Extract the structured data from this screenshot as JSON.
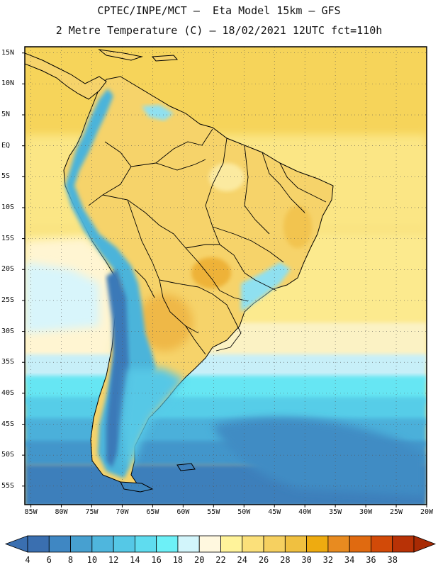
{
  "header": {
    "line1": "CPTEC/INPE/MCT –  Eta Model 15km – GFS",
    "line2": "2 Metre Temperature (C) – 18/02/2021 12UTC fct=110h"
  },
  "axes": {
    "lat_labels": [
      "15N",
      "10N",
      "5N",
      "EQ",
      "5S",
      "10S",
      "15S",
      "20S",
      "25S",
      "30S",
      "35S",
      "40S",
      "45S",
      "50S",
      "55S"
    ],
    "lon_labels": [
      "85W",
      "80W",
      "75W",
      "70W",
      "65W",
      "60W",
      "55W",
      "50W",
      "45W",
      "40W",
      "35W",
      "30W",
      "25W",
      "20W"
    ],
    "lat_range": [
      16,
      -58
    ],
    "lon_range": [
      -86,
      -20
    ]
  },
  "colorbar": {
    "labels": [
      "4",
      "6",
      "8",
      "10",
      "12",
      "14",
      "16",
      "18",
      "20",
      "22",
      "24",
      "26",
      "28",
      "30",
      "32",
      "34",
      "36",
      "38"
    ],
    "colors": [
      "#3a6fb0",
      "#3f87c3",
      "#47a0d0",
      "#4fb6dd",
      "#55c8e6",
      "#5fdcef",
      "#6df0f7",
      "#d2f5fb",
      "#fff8df",
      "#fff39a",
      "#fbe07a",
      "#f6d060",
      "#f0c040",
      "#eeab10",
      "#e88b20",
      "#e06a10",
      "#d24a08",
      "#b83206"
    ]
  },
  "map": {
    "ocean_north_color": "#fcd45a",
    "ocean_tropical_color": "#f8e888",
    "land_color": "#f6d568",
    "andes_color": "#4ab8d8",
    "border_color": "#000000"
  }
}
